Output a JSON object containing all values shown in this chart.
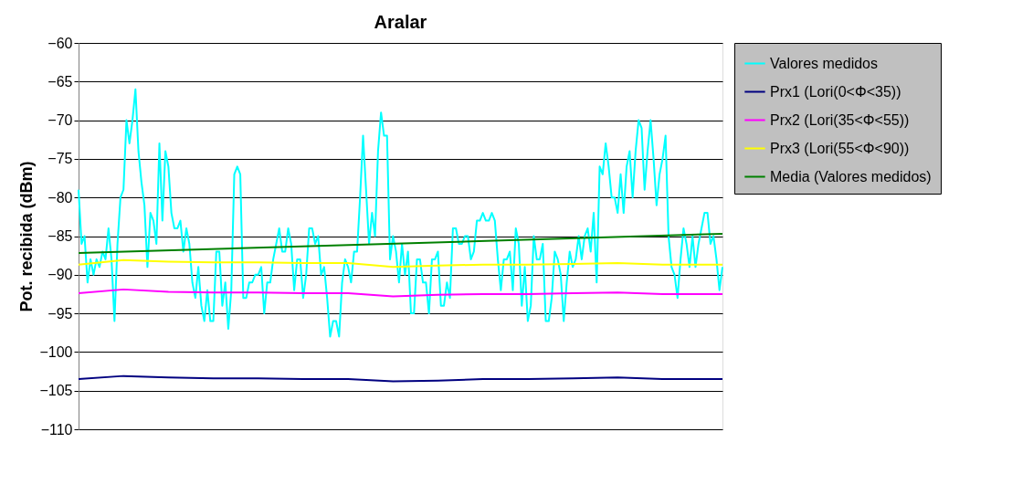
{
  "chart_data": {
    "type": "line",
    "title": "Aralar",
    "ylabel": "Pot. recibida (dBm)",
    "categories": [
      null,
      null,
      null,
      null,
      null,
      null,
      null,
      null,
      null,
      null,
      null,
      null,
      null,
      null,
      null,
      null,
      null,
      null,
      null,
      null,
      null,
      null,
      null,
      null,
      null,
      null,
      null,
      null,
      null,
      null,
      null,
      null,
      null,
      null,
      null,
      null,
      null,
      null,
      null,
      null,
      null,
      null,
      null,
      null,
      null,
      null,
      null,
      null,
      null,
      null,
      null,
      null,
      null,
      null,
      null,
      null,
      null,
      null,
      null,
      null,
      null,
      null,
      null,
      null,
      null,
      null,
      null,
      null,
      null,
      null,
      null,
      null,
      null,
      null,
      null,
      null,
      null,
      null,
      null,
      null,
      null,
      null,
      null,
      null,
      null,
      null,
      null,
      null,
      null,
      null,
      null,
      null,
      null,
      null,
      null,
      null,
      null,
      null,
      null,
      null,
      null,
      null,
      null,
      null,
      null,
      null,
      null,
      null,
      null,
      null,
      null,
      null,
      null,
      null,
      null,
      null,
      null,
      null,
      null,
      null,
      null,
      null,
      null,
      null,
      null,
      null,
      null,
      null,
      null,
      null,
      null,
      null,
      null,
      null,
      null,
      null,
      null,
      null,
      null,
      null,
      null,
      null,
      null,
      null,
      null,
      null,
      null,
      null,
      null,
      null,
      null,
      null,
      null,
      null,
      null,
      null,
      null,
      null,
      null,
      null,
      null,
      null,
      null,
      null,
      null,
      null,
      null,
      null,
      null,
      null,
      null,
      null,
      null,
      null,
      null,
      null,
      null,
      null,
      null,
      null,
      null,
      null,
      null,
      null,
      null,
      null,
      null,
      null,
      null,
      null,
      null,
      null,
      null,
      null,
      null,
      null,
      null,
      null,
      null,
      null,
      null,
      null,
      null,
      null,
      null,
      null,
      null,
      null,
      null,
      null,
      null,
      null,
      null,
      null,
      null,
      null
    ],
    "series": [
      {
        "name": "Valores medidos",
        "color": "#00ffff",
        "values": [
          -79,
          -86,
          -85,
          -91,
          -88,
          -90,
          -88,
          -89,
          -87,
          -88,
          -84,
          -88,
          -96,
          -86,
          -80,
          -79,
          -70,
          -73,
          -70,
          -66,
          -74,
          -78,
          -81,
          -89,
          -82,
          -83,
          -86,
          -73,
          -83,
          -74,
          -76,
          -82,
          -84,
          -84,
          -83,
          -87,
          -84,
          -86,
          -91,
          -93,
          -89,
          -94,
          -96,
          -92,
          -96,
          -96,
          -87,
          -87,
          -94,
          -91,
          -97,
          -92,
          -77,
          -76,
          -77,
          -93,
          -93,
          -91,
          -91,
          -90,
          -90,
          -89,
          -95,
          -91,
          -91,
          -88,
          -86,
          -84,
          -87,
          -87,
          -84,
          -86,
          -92,
          -88,
          -88,
          -93,
          -90,
          -84,
          -84,
          -86,
          -85,
          -90,
          -89,
          -93,
          -98,
          -96,
          -96,
          -98,
          -91,
          -88,
          -89,
          -91,
          -87,
          -87,
          -80,
          -72,
          -79,
          -86,
          -82,
          -85,
          -74,
          -69,
          -72,
          -72,
          -88,
          -85,
          -87,
          -91,
          -86,
          -90,
          -87,
          -95,
          -95,
          -88,
          -88,
          -91,
          -91,
          -95,
          -88,
          -88,
          -87,
          -94,
          -94,
          -91,
          -93,
          -84,
          -84,
          -86,
          -86,
          -85,
          -85,
          -88,
          -87,
          -83,
          -83,
          -82,
          -83,
          -83,
          -82,
          -83,
          -88,
          -92,
          -88,
          -88,
          -87,
          -92,
          -84,
          -86,
          -94,
          -89,
          -96,
          -94,
          -85,
          -88,
          -88,
          -86,
          -96,
          -96,
          -93,
          -87,
          -88,
          -90,
          -96,
          -91,
          -87,
          -89,
          -88,
          -85,
          -88,
          -85,
          -84,
          -87,
          -82,
          -91,
          -76,
          -77,
          -73,
          -76,
          -80,
          -80,
          -82,
          -77,
          -82,
          -76,
          -74,
          -80,
          -74,
          -70,
          -71,
          -79,
          -74,
          -70,
          -75,
          -81,
          -77,
          -75,
          -72,
          -85,
          -89,
          -90,
          -93,
          -88,
          -84,
          -86,
          -89,
          -85,
          -89,
          -86,
          -84,
          -82,
          -82,
          -86,
          -85,
          -88,
          -92,
          -89
        ]
      },
      {
        "name": "Prx1 (Lori(0<Φ<35))",
        "color": "#000080",
        "values": [
          -103.5,
          null,
          null,
          null,
          null,
          null,
          null,
          null,
          null,
          null,
          null,
          null,
          null,
          null,
          null,
          -103.1,
          null,
          null,
          null,
          null,
          null,
          null,
          null,
          null,
          null,
          null,
          null,
          null,
          null,
          null,
          -103.3,
          null,
          null,
          null,
          null,
          null,
          null,
          null,
          null,
          null,
          null,
          null,
          null,
          null,
          null,
          -103.4,
          null,
          null,
          null,
          null,
          null,
          null,
          null,
          null,
          null,
          null,
          null,
          null,
          null,
          null,
          -103.4,
          null,
          null,
          null,
          null,
          null,
          null,
          null,
          null,
          null,
          null,
          null,
          null,
          null,
          null,
          -103.5,
          null,
          null,
          null,
          null,
          null,
          null,
          null,
          null,
          null,
          null,
          null,
          null,
          null,
          null,
          -103.5,
          null,
          null,
          null,
          null,
          null,
          null,
          null,
          null,
          null,
          null,
          null,
          null,
          null,
          null,
          -103.8,
          null,
          null,
          null,
          null,
          null,
          null,
          null,
          null,
          null,
          null,
          null,
          null,
          null,
          null,
          -103.7,
          null,
          null,
          null,
          null,
          null,
          null,
          null,
          null,
          null,
          null,
          null,
          null,
          null,
          null,
          -103.5,
          null,
          null,
          null,
          null,
          null,
          null,
          null,
          null,
          null,
          null,
          null,
          null,
          null,
          null,
          -103.5,
          null,
          null,
          null,
          null,
          null,
          null,
          null,
          null,
          null,
          null,
          null,
          null,
          null,
          null,
          -103.4,
          null,
          null,
          null,
          null,
          null,
          null,
          null,
          null,
          null,
          null,
          null,
          null,
          null,
          null,
          -103.3,
          null,
          null,
          null,
          null,
          null,
          null,
          null,
          null,
          null,
          null,
          null,
          null,
          null,
          null,
          -103.5,
          null,
          null,
          null,
          null,
          null,
          null,
          null,
          null,
          null,
          null,
          null,
          null,
          null,
          null,
          -103.5,
          null,
          null,
          null,
          null,
          -103.5
        ]
      },
      {
        "name": "Prx2 (Lori(35<Φ<55))",
        "color": "#ff00ff",
        "values": [
          -92.4,
          null,
          null,
          null,
          null,
          null,
          null,
          null,
          null,
          null,
          null,
          null,
          null,
          null,
          null,
          -91.9,
          null,
          null,
          null,
          null,
          null,
          null,
          null,
          null,
          null,
          null,
          null,
          null,
          null,
          null,
          -92.2,
          null,
          null,
          null,
          null,
          null,
          null,
          null,
          null,
          null,
          null,
          null,
          null,
          null,
          null,
          -92.3,
          null,
          null,
          null,
          null,
          null,
          null,
          null,
          null,
          null,
          null,
          null,
          null,
          null,
          null,
          -92.3,
          null,
          null,
          null,
          null,
          null,
          null,
          null,
          null,
          null,
          null,
          null,
          null,
          null,
          null,
          -92.4,
          null,
          null,
          null,
          null,
          null,
          null,
          null,
          null,
          null,
          null,
          null,
          null,
          null,
          null,
          -92.4,
          null,
          null,
          null,
          null,
          null,
          null,
          null,
          null,
          null,
          null,
          null,
          null,
          null,
          null,
          -92.8,
          null,
          null,
          null,
          null,
          null,
          null,
          null,
          null,
          null,
          null,
          null,
          null,
          null,
          null,
          -92.6,
          null,
          null,
          null,
          null,
          null,
          null,
          null,
          null,
          null,
          null,
          null,
          null,
          null,
          null,
          -92.5,
          null,
          null,
          null,
          null,
          null,
          null,
          null,
          null,
          null,
          null,
          null,
          null,
          null,
          null,
          -92.5,
          null,
          null,
          null,
          null,
          null,
          null,
          null,
          null,
          null,
          null,
          null,
          null,
          null,
          null,
          -92.4,
          null,
          null,
          null,
          null,
          null,
          null,
          null,
          null,
          null,
          null,
          null,
          null,
          null,
          null,
          -92.3,
          null,
          null,
          null,
          null,
          null,
          null,
          null,
          null,
          null,
          null,
          null,
          null,
          null,
          null,
          -92.5,
          null,
          null,
          null,
          null,
          null,
          null,
          null,
          null,
          null,
          null,
          null,
          null,
          null,
          null,
          -92.5,
          null,
          null,
          null,
          null,
          -92.5
        ]
      },
      {
        "name": "Prx3 (Lori(55<Φ<90))",
        "color": "#ffff00",
        "values": [
          -88.7,
          null,
          null,
          null,
          null,
          null,
          null,
          null,
          null,
          null,
          null,
          null,
          null,
          null,
          null,
          -88.1,
          null,
          null,
          null,
          null,
          null,
          null,
          null,
          null,
          null,
          null,
          null,
          null,
          null,
          null,
          -88.3,
          null,
          null,
          null,
          null,
          null,
          null,
          null,
          null,
          null,
          null,
          null,
          null,
          null,
          null,
          -88.4,
          null,
          null,
          null,
          null,
          null,
          null,
          null,
          null,
          null,
          null,
          null,
          null,
          null,
          null,
          -88.4,
          null,
          null,
          null,
          null,
          null,
          null,
          null,
          null,
          null,
          null,
          null,
          null,
          null,
          null,
          -88.5,
          null,
          null,
          null,
          null,
          null,
          null,
          null,
          null,
          null,
          null,
          null,
          null,
          null,
          null,
          -88.5,
          null,
          null,
          null,
          null,
          null,
          null,
          null,
          null,
          null,
          null,
          null,
          null,
          null,
          null,
          -89.0,
          null,
          null,
          null,
          null,
          null,
          null,
          null,
          null,
          null,
          null,
          null,
          null,
          null,
          null,
          -88.8,
          null,
          null,
          null,
          null,
          null,
          null,
          null,
          null,
          null,
          null,
          null,
          null,
          null,
          null,
          -88.7,
          null,
          null,
          null,
          null,
          null,
          null,
          null,
          null,
          null,
          null,
          null,
          null,
          null,
          null,
          -88.7,
          null,
          null,
          null,
          null,
          null,
          null,
          null,
          null,
          null,
          null,
          null,
          null,
          null,
          null,
          -88.6,
          null,
          null,
          null,
          null,
          null,
          null,
          null,
          null,
          null,
          null,
          null,
          null,
          null,
          null,
          -88.5,
          null,
          null,
          null,
          null,
          null,
          null,
          null,
          null,
          null,
          null,
          null,
          null,
          null,
          null,
          -88.7,
          null,
          null,
          null,
          null,
          null,
          null,
          null,
          null,
          null,
          null,
          null,
          null,
          null,
          null,
          -88.7,
          null,
          null,
          null,
          null,
          -88.7
        ]
      },
      {
        "name": "Media (Valores medidos)",
        "color": "#008000",
        "values": [
          -87.2,
          null,
          null,
          null,
          null,
          null,
          null,
          null,
          null,
          null,
          null,
          null,
          null,
          null,
          null,
          null,
          null,
          null,
          null,
          null,
          null,
          null,
          null,
          null,
          null,
          null,
          null,
          null,
          null,
          null,
          null,
          null,
          null,
          null,
          null,
          null,
          null,
          null,
          null,
          null,
          null,
          null,
          null,
          null,
          null,
          null,
          null,
          null,
          null,
          null,
          null,
          null,
          null,
          null,
          null,
          null,
          null,
          null,
          null,
          null,
          null,
          null,
          null,
          null,
          null,
          null,
          null,
          null,
          null,
          null,
          null,
          null,
          null,
          null,
          null,
          null,
          null,
          null,
          null,
          null,
          null,
          null,
          null,
          null,
          null,
          null,
          null,
          null,
          null,
          null,
          null,
          null,
          null,
          null,
          null,
          null,
          null,
          null,
          null,
          null,
          null,
          null,
          null,
          null,
          null,
          null,
          null,
          null,
          null,
          null,
          null,
          null,
          null,
          null,
          null,
          null,
          null,
          null,
          null,
          null,
          null,
          null,
          null,
          null,
          null,
          null,
          null,
          null,
          null,
          null,
          null,
          null,
          null,
          null,
          null,
          null,
          null,
          null,
          null,
          null,
          null,
          null,
          null,
          null,
          null,
          null,
          null,
          null,
          null,
          null,
          null,
          null,
          null,
          null,
          null,
          null,
          null,
          null,
          null,
          null,
          null,
          null,
          null,
          null,
          null,
          null,
          null,
          null,
          null,
          null,
          null,
          null,
          null,
          null,
          null,
          null,
          null,
          null,
          null,
          null,
          null,
          null,
          null,
          null,
          null,
          null,
          null,
          null,
          null,
          null,
          null,
          null,
          null,
          null,
          null,
          null,
          null,
          null,
          null,
          null,
          null,
          null,
          null,
          null,
          null,
          null,
          null,
          null,
          null,
          null,
          null,
          null,
          null,
          null,
          null,
          -84.7
        ]
      }
    ],
    "ylim": [
      -110,
      -60
    ],
    "yticks": [
      -110,
      -105,
      -100,
      -95,
      -90,
      -85,
      -80,
      -75,
      -70,
      -65,
      -60
    ],
    "grid": "y",
    "tick_labels": "y",
    "legend": "right",
    "marker": "none",
    "line_style": "solid"
  }
}
